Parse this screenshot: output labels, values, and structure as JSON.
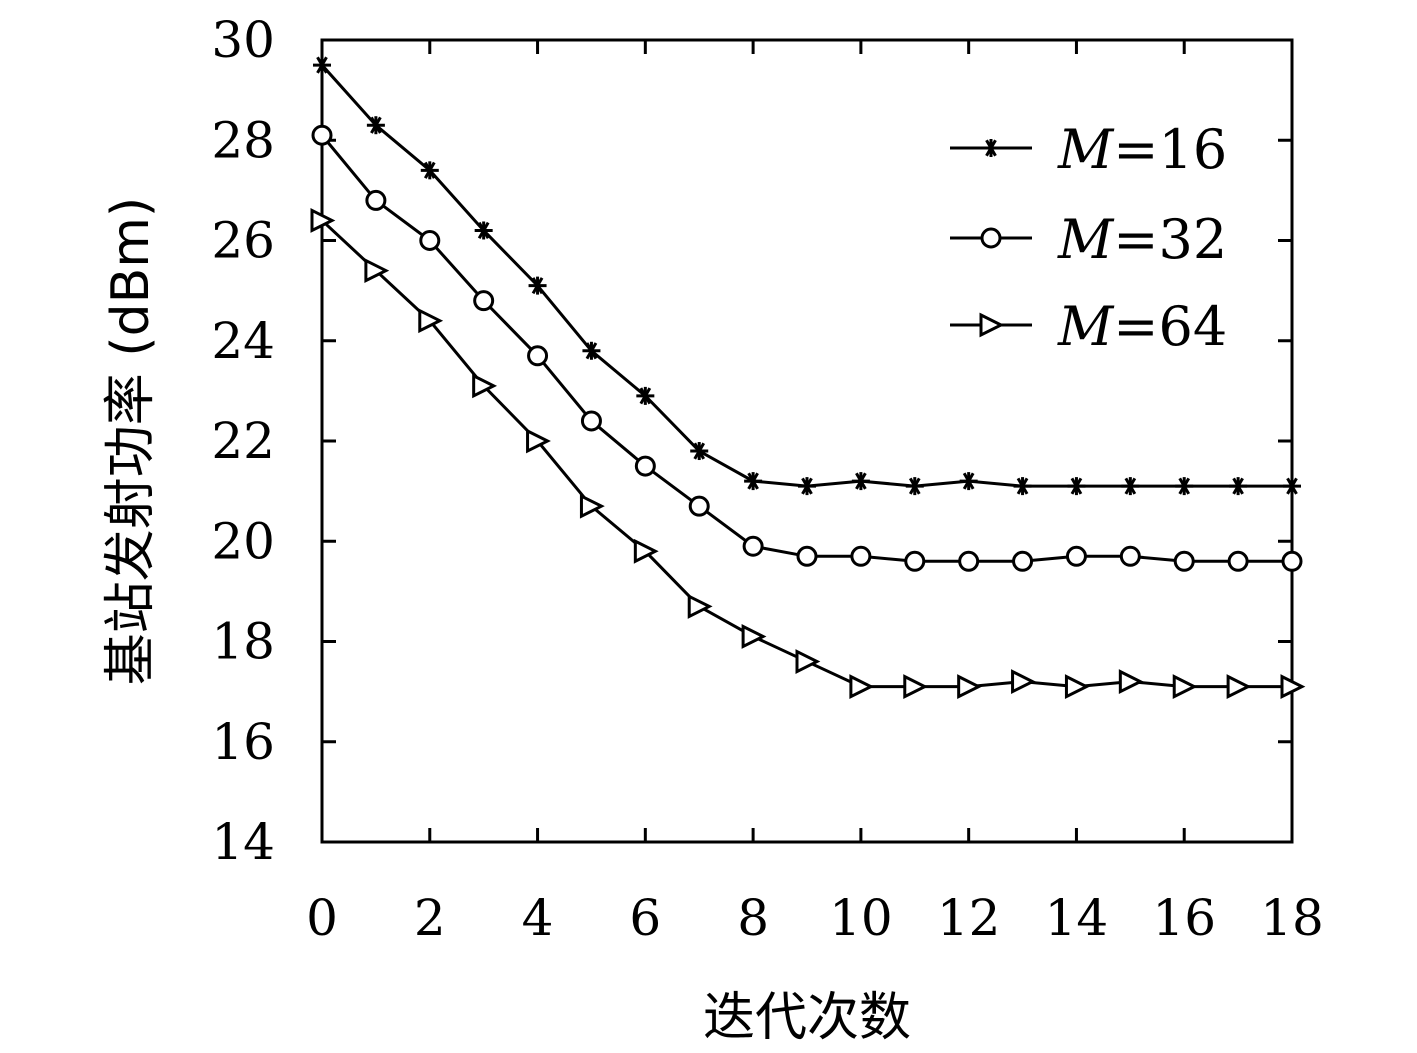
{
  "chart_data": {
    "type": "line",
    "title": "",
    "xlabel": "迭代次数",
    "ylabel": "基站发射功率 (dBm)",
    "xlim": [
      0,
      18
    ],
    "ylim": [
      14,
      30
    ],
    "x_ticks": [
      0,
      2,
      4,
      6,
      8,
      10,
      12,
      14,
      16,
      18
    ],
    "y_ticks": [
      14,
      16,
      18,
      20,
      22,
      24,
      26,
      28,
      30
    ],
    "grid": false,
    "legend_position": "top-right",
    "x": [
      0,
      1,
      2,
      3,
      4,
      5,
      6,
      7,
      8,
      9,
      10,
      11,
      12,
      13,
      14,
      15,
      16,
      17,
      18
    ],
    "series": [
      {
        "name": "M=16",
        "legend_var": "M",
        "legend_rest": "=16",
        "marker": "asterisk",
        "values": [
          29.5,
          28.3,
          27.4,
          26.2,
          25.1,
          23.8,
          22.9,
          21.8,
          21.2,
          21.1,
          21.2,
          21.1,
          21.2,
          21.1,
          21.1,
          21.1,
          21.1,
          21.1,
          21.1
        ]
      },
      {
        "name": "M=32",
        "legend_var": "M",
        "legend_rest": "=32",
        "marker": "circle",
        "values": [
          28.1,
          26.8,
          26.0,
          24.8,
          23.7,
          22.4,
          21.5,
          20.7,
          19.9,
          19.7,
          19.7,
          19.6,
          19.6,
          19.6,
          19.7,
          19.7,
          19.6,
          19.6,
          19.6
        ]
      },
      {
        "name": "M=64",
        "legend_var": "M",
        "legend_rest": "=64",
        "marker": "triangle-right",
        "values": [
          26.4,
          25.4,
          24.4,
          23.1,
          22.0,
          20.7,
          19.8,
          18.7,
          18.1,
          17.6,
          17.1,
          17.1,
          17.1,
          17.2,
          17.1,
          17.2,
          17.1,
          17.1,
          17.1
        ]
      }
    ],
    "line_color": "#000000"
  }
}
